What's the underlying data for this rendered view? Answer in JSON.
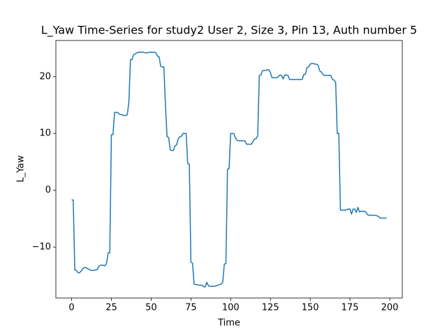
{
  "chart_data": {
    "type": "line",
    "title": "L_Yaw Time-Series for study2 User 2, Size 3, Pin 13, Auth number 5",
    "xlabel": "Time",
    "ylabel": "L_Yaw",
    "x": [
      0,
      1,
      2,
      3,
      4,
      5,
      6,
      7,
      8,
      9,
      10,
      11,
      12,
      13,
      14,
      15,
      16,
      17,
      18,
      19,
      20,
      21,
      22,
      23,
      24,
      25,
      26,
      27,
      28,
      29,
      30,
      31,
      32,
      33,
      34,
      35,
      36,
      37,
      38,
      39,
      40,
      41,
      42,
      43,
      44,
      45,
      46,
      47,
      48,
      49,
      50,
      51,
      52,
      53,
      54,
      55,
      56,
      57,
      58,
      59,
      60,
      61,
      62,
      63,
      64,
      65,
      66,
      67,
      68,
      69,
      70,
      71,
      72,
      73,
      74,
      75,
      76,
      77,
      78,
      79,
      80,
      81,
      82,
      83,
      84,
      85,
      86,
      87,
      88,
      89,
      90,
      91,
      92,
      93,
      94,
      95,
      96,
      97,
      98,
      99,
      100,
      101,
      102,
      103,
      104,
      105,
      106,
      107,
      108,
      109,
      110,
      111,
      112,
      113,
      114,
      115,
      116,
      117,
      118,
      119,
      120,
      121,
      122,
      123,
      124,
      125,
      126,
      127,
      128,
      129,
      130,
      131,
      132,
      133,
      134,
      135,
      136,
      137,
      138,
      139,
      140,
      141,
      142,
      143,
      144,
      145,
      146,
      147,
      148,
      149,
      150,
      151,
      152,
      153,
      154,
      155,
      156,
      157,
      158,
      159,
      160,
      161,
      162,
      163,
      164,
      165,
      166,
      167,
      168,
      169,
      170,
      171,
      172,
      173,
      174,
      175,
      176,
      177,
      178,
      179,
      180,
      181,
      182,
      183,
      184,
      185,
      186,
      187,
      188,
      189,
      190,
      191,
      192,
      193,
      194,
      195,
      196,
      197,
      198
    ],
    "series": [
      {
        "color": "#1f77b4",
        "values": [
          -1.7,
          -1.7,
          -14.0,
          -14.1,
          -14.5,
          -14.5,
          -14.2,
          -13.8,
          -13.6,
          -13.6,
          -13.8,
          -13.9,
          -14.1,
          -14.1,
          -14.1,
          -14.0,
          -14.0,
          -13.4,
          -13.2,
          -13.2,
          -13.2,
          -13.3,
          -12.8,
          -11.0,
          -11.0,
          9.8,
          9.8,
          13.7,
          13.7,
          13.7,
          13.4,
          13.3,
          13.3,
          13.1,
          13.2,
          13.3,
          15.5,
          23.0,
          23.0,
          23.9,
          24.0,
          24.2,
          24.3,
          24.3,
          24.3,
          24.3,
          24.2,
          24.2,
          24.2,
          24.3,
          24.3,
          24.3,
          24.3,
          24.2,
          23.6,
          23.5,
          21.8,
          21.7,
          21.7,
          15.0,
          9.4,
          9.3,
          7.1,
          7.0,
          7.0,
          7.8,
          8.0,
          9.0,
          9.4,
          9.5,
          10.0,
          10.0,
          10.0,
          4.7,
          4.6,
          -12.7,
          -12.8,
          -16.5,
          -16.6,
          -16.6,
          -16.7,
          -16.7,
          -16.7,
          -17.0,
          -17.0,
          -16.2,
          -16.8,
          -16.9,
          -16.9,
          -16.9,
          -16.9,
          -16.8,
          -16.7,
          -16.6,
          -16.5,
          -16.2,
          -13.0,
          -12.9,
          3.7,
          3.8,
          10.0,
          10.0,
          10.0,
          9.2,
          8.8,
          8.7,
          8.7,
          8.7,
          8.7,
          8.7,
          8.1,
          8.1,
          8.1,
          8.1,
          8.6,
          9.0,
          9.1,
          9.6,
          20.2,
          20.3,
          21.0,
          21.1,
          21.1,
          21.2,
          21.2,
          20.7,
          19.8,
          19.8,
          19.8,
          19.8,
          20.0,
          20.3,
          20.2,
          19.6,
          20.3,
          20.3,
          20.2,
          19.5,
          19.5,
          19.5,
          19.5,
          19.5,
          19.5,
          19.5,
          19.5,
          19.5,
          20.4,
          20.4,
          21.6,
          21.7,
          22.2,
          22.3,
          22.3,
          22.2,
          22.2,
          22.0,
          21.0,
          20.8,
          20.4,
          20.2,
          20.2,
          20.2,
          20.2,
          20.2,
          19.5,
          19.4,
          19.0,
          10.0,
          10.0,
          -3.5,
          -3.5,
          -3.5,
          -3.5,
          -3.4,
          -3.3,
          -3.3,
          -4.2,
          -3.3,
          -3.3,
          -3.9,
          -3.0,
          -3.8,
          -3.7,
          -3.7,
          -3.7,
          -3.8,
          -4.3,
          -4.4,
          -4.4,
          -4.4,
          -4.4,
          -4.4,
          -4.5,
          -4.6,
          -4.9,
          -4.9,
          -4.9,
          -4.9,
          -4.9
        ]
      }
    ],
    "xlim": [
      -9.9,
      207.9
    ],
    "xticks": [
      0,
      25,
      50,
      75,
      100,
      125,
      150,
      175,
      200
    ],
    "ylim": [
      -18.96,
      26.36
    ],
    "yticks": [
      {
        "value": -10,
        "label": "−10"
      },
      0,
      10,
      20
    ]
  }
}
